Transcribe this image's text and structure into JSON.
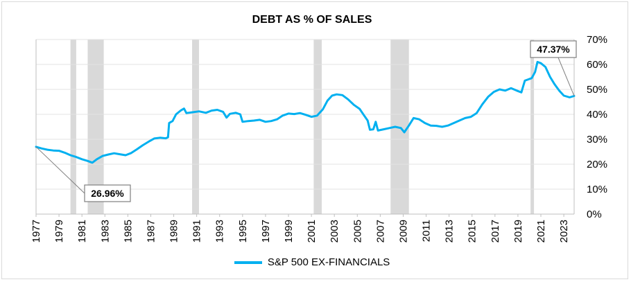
{
  "chart_data": {
    "type": "line",
    "title": "DEBT AS % OF SALES",
    "xlabel": "",
    "ylabel": "",
    "ylim": [
      0,
      70
    ],
    "y_ticks": [
      "0%",
      "10%",
      "20%",
      "30%",
      "40%",
      "50%",
      "60%",
      "70%"
    ],
    "x_ticks": [
      "1977",
      "1979",
      "1981",
      "1983",
      "1985",
      "1987",
      "1989",
      "1991",
      "1993",
      "1995",
      "1997",
      "1999",
      "2001",
      "2003",
      "2005",
      "2007",
      "2009",
      "2011",
      "2013",
      "2015",
      "2017",
      "2019",
      "2021",
      "2023"
    ],
    "xlim": [
      1977.0,
      2023.9
    ],
    "grid": "horizontal",
    "y_axis_position": "right",
    "legend_position": "bottom",
    "recessions": [
      [
        1980.0,
        1980.5
      ],
      [
        1981.5,
        1982.9
      ],
      [
        1990.6,
        1991.2
      ],
      [
        2001.2,
        2001.9
      ],
      [
        2007.9,
        2009.5
      ],
      [
        2020.1,
        2020.4
      ]
    ],
    "series": [
      {
        "name": "S&P 500 EX-FINANCIALS",
        "color": "#00b0f0",
        "points": [
          [
            1977.0,
            26.96
          ],
          [
            1977.5,
            26.3
          ],
          [
            1978.0,
            25.8
          ],
          [
            1978.5,
            25.5
          ],
          [
            1979.0,
            25.4
          ],
          [
            1979.5,
            24.6
          ],
          [
            1980.0,
            23.6
          ],
          [
            1980.5,
            22.9
          ],
          [
            1981.0,
            22.0
          ],
          [
            1981.5,
            21.3
          ],
          [
            1981.9,
            20.6
          ],
          [
            1982.3,
            22.0
          ],
          [
            1982.8,
            23.3
          ],
          [
            1983.3,
            23.9
          ],
          [
            1983.8,
            24.4
          ],
          [
            1984.3,
            24.0
          ],
          [
            1984.8,
            23.6
          ],
          [
            1985.3,
            24.5
          ],
          [
            1985.8,
            26.0
          ],
          [
            1986.3,
            27.6
          ],
          [
            1986.8,
            29.0
          ],
          [
            1987.3,
            30.3
          ],
          [
            1987.8,
            30.6
          ],
          [
            1988.3,
            30.4
          ],
          [
            1988.5,
            30.8
          ],
          [
            1988.6,
            36.5
          ],
          [
            1988.9,
            37.3
          ],
          [
            1989.2,
            40.0
          ],
          [
            1989.6,
            41.5
          ],
          [
            1989.9,
            42.3
          ],
          [
            1990.1,
            40.5
          ],
          [
            1990.6,
            40.8
          ],
          [
            1991.2,
            41.2
          ],
          [
            1991.8,
            40.6
          ],
          [
            1992.3,
            41.5
          ],
          [
            1992.8,
            41.8
          ],
          [
            1993.3,
            41.0
          ],
          [
            1993.6,
            38.7
          ],
          [
            1993.9,
            40.2
          ],
          [
            1994.4,
            40.6
          ],
          [
            1994.8,
            40.0
          ],
          [
            1995.0,
            37.0
          ],
          [
            1995.5,
            37.3
          ],
          [
            1996.0,
            37.5
          ],
          [
            1996.5,
            37.8
          ],
          [
            1997.0,
            37.0
          ],
          [
            1997.5,
            37.3
          ],
          [
            1998.0,
            38.0
          ],
          [
            1998.5,
            39.5
          ],
          [
            1999.0,
            40.3
          ],
          [
            1999.5,
            40.1
          ],
          [
            2000.0,
            40.5
          ],
          [
            2000.5,
            39.8
          ],
          [
            2001.0,
            39.0
          ],
          [
            2001.5,
            39.5
          ],
          [
            2002.0,
            42.0
          ],
          [
            2002.4,
            45.5
          ],
          [
            2002.8,
            47.5
          ],
          [
            2003.2,
            48.0
          ],
          [
            2003.7,
            47.7
          ],
          [
            2004.2,
            46.0
          ],
          [
            2004.7,
            43.8
          ],
          [
            2005.2,
            42.2
          ],
          [
            2005.6,
            39.5
          ],
          [
            2005.9,
            37.5
          ],
          [
            2006.1,
            33.8
          ],
          [
            2006.4,
            34.0
          ],
          [
            2006.6,
            37.0
          ],
          [
            2006.8,
            33.5
          ],
          [
            2007.3,
            34.0
          ],
          [
            2007.8,
            34.5
          ],
          [
            2008.3,
            35.0
          ],
          [
            2008.8,
            34.5
          ],
          [
            2009.1,
            32.8
          ],
          [
            2009.5,
            35.5
          ],
          [
            2009.9,
            38.5
          ],
          [
            2010.4,
            38.0
          ],
          [
            2010.9,
            36.5
          ],
          [
            2011.4,
            35.5
          ],
          [
            2011.9,
            35.4
          ],
          [
            2012.4,
            35.0
          ],
          [
            2012.9,
            35.5
          ],
          [
            2013.4,
            36.5
          ],
          [
            2013.9,
            37.5
          ],
          [
            2014.4,
            38.5
          ],
          [
            2014.9,
            39.0
          ],
          [
            2015.4,
            40.5
          ],
          [
            2015.9,
            44.0
          ],
          [
            2016.4,
            47.0
          ],
          [
            2016.9,
            49.0
          ],
          [
            2017.4,
            50.0
          ],
          [
            2017.9,
            49.5
          ],
          [
            2018.4,
            50.5
          ],
          [
            2018.9,
            49.5
          ],
          [
            2019.3,
            48.8
          ],
          [
            2019.6,
            53.5
          ],
          [
            2019.9,
            54.0
          ],
          [
            2020.2,
            54.5
          ],
          [
            2020.5,
            57.0
          ],
          [
            2020.7,
            61.0
          ],
          [
            2021.0,
            60.5
          ],
          [
            2021.4,
            59.0
          ],
          [
            2021.8,
            55.0
          ],
          [
            2022.2,
            52.0
          ],
          [
            2022.6,
            49.5
          ],
          [
            2023.0,
            47.5
          ],
          [
            2023.5,
            46.8
          ],
          [
            2023.9,
            47.37
          ]
        ]
      }
    ],
    "annotations": [
      {
        "label": "26.96%",
        "x": 1977.0,
        "y": 26.96
      },
      {
        "label": "47.37%",
        "x": 2023.9,
        "y": 47.37
      }
    ]
  }
}
